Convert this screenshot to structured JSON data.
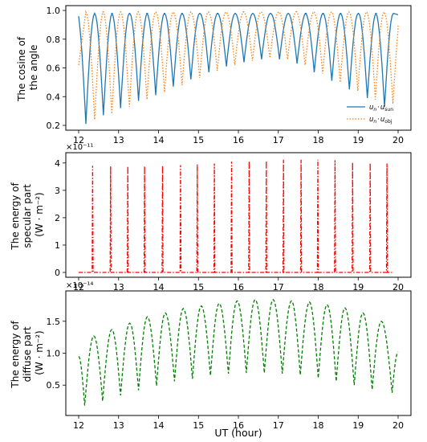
{
  "figure": {
    "xlabel": "UT (hour)"
  },
  "chart_data": [
    {
      "type": "line",
      "ylabel_lines": [
        "The cosine of",
        "the angle"
      ],
      "xlim": [
        12,
        20
      ],
      "ylim": [
        0.2,
        1.0
      ],
      "x_ticks": [
        "12",
        "13",
        "14",
        "15",
        "16",
        "17",
        "18",
        "19",
        "20"
      ],
      "y_ticks": [
        "0.2",
        "0.4",
        "0.6",
        "0.8",
        "1.0"
      ],
      "y_tick_values": [
        0.2,
        0.4,
        0.6,
        0.8,
        1.0
      ],
      "legend_position": "lower right",
      "series": [
        {
          "name_main": "u",
          "name_sub": "n",
          "name_dot": "·",
          "name_main2": "u",
          "name_sub2": "sun",
          "color": "#1f77b4",
          "style": "solid",
          "min_times": [
            12.18,
            12.62,
            13.05,
            13.5,
            13.93,
            14.37,
            14.81,
            15.26,
            15.7,
            16.14,
            16.58,
            17.03,
            17.47,
            17.9,
            18.34,
            18.78,
            19.23,
            19.66
          ],
          "min_values": [
            0.21,
            0.27,
            0.32,
            0.37,
            0.41,
            0.47,
            0.52,
            0.57,
            0.61,
            0.64,
            0.66,
            0.66,
            0.63,
            0.57,
            0.51,
            0.45,
            0.39,
            0.33
          ],
          "max_value": 0.98
        },
        {
          "name_main": "u",
          "name_sub": "n",
          "name_dot": "·",
          "name_main2": "u",
          "name_sub2": "obj",
          "color": "#ff7f0e",
          "style": "dotted",
          "min_times": [
            12.4,
            12.83,
            13.27,
            13.71,
            14.15,
            14.59,
            15.03,
            15.47,
            15.91,
            16.35,
            16.79,
            17.23,
            17.67,
            18.11,
            18.55,
            18.99,
            19.43,
            19.87
          ],
          "min_values": [
            0.24,
            0.28,
            0.33,
            0.38,
            0.43,
            0.48,
            0.53,
            0.58,
            0.62,
            0.65,
            0.67,
            0.66,
            0.62,
            0.56,
            0.5,
            0.44,
            0.38,
            0.35
          ],
          "max_value": 0.99
        }
      ]
    },
    {
      "type": "line",
      "ylabel_lines": [
        "The energy of",
        "specular part",
        "(W · m⁻²)"
      ],
      "offset_text": "×10⁻¹¹",
      "xlim": [
        12,
        20
      ],
      "ylim": [
        0,
        4.2
      ],
      "x_ticks": [
        "12",
        "13",
        "14",
        "15",
        "16",
        "17",
        "18",
        "19",
        "20"
      ],
      "y_ticks": [
        "0",
        "1",
        "2",
        "3",
        "4"
      ],
      "y_tick_values": [
        0,
        1,
        2,
        3,
        4
      ],
      "series": [
        {
          "color": "#ff0000",
          "style": "dashdot",
          "spike_times": [
            12.35,
            12.8,
            13.23,
            13.65,
            14.1,
            14.55,
            14.97,
            15.4,
            15.83,
            16.27,
            16.7,
            17.13,
            17.57,
            17.99,
            18.42,
            18.86,
            19.3,
            19.72
          ],
          "spike_values": [
            3.9,
            3.88,
            3.88,
            3.88,
            3.9,
            3.92,
            3.95,
            3.98,
            4.05,
            4.07,
            4.08,
            4.12,
            4.12,
            4.12,
            4.1,
            4.02,
            4.0,
            3.98
          ],
          "baseline": 0.0
        }
      ]
    },
    {
      "type": "line",
      "ylabel_lines": [
        "The energy of",
        "diffuse part",
        "(W · m⁻²)"
      ],
      "offset_text": "×10⁻¹⁴",
      "xlim": [
        12,
        20
      ],
      "ylim": [
        0.1,
        1.9
      ],
      "x_ticks": [
        "12",
        "13",
        "14",
        "15",
        "16",
        "17",
        "18",
        "19",
        "20"
      ],
      "y_ticks": [
        "0.5",
        "1.0",
        "1.5"
      ],
      "y_tick_values": [
        0.5,
        1.0,
        1.5
      ],
      "series": [
        {
          "color": "#008000",
          "style": "dashed",
          "start": [
            12.0,
            0.95
          ],
          "end": [
            20.0,
            1.02
          ],
          "min_times": [
            12.15,
            12.6,
            13.05,
            13.5,
            13.95,
            14.4,
            14.85,
            15.3,
            15.75,
            16.2,
            16.65,
            17.1,
            17.55,
            18.0,
            18.45,
            18.9,
            19.35,
            19.85
          ],
          "min_values": [
            0.18,
            0.25,
            0.34,
            0.42,
            0.49,
            0.56,
            0.6,
            0.65,
            0.68,
            0.69,
            0.69,
            0.68,
            0.66,
            0.61,
            0.56,
            0.5,
            0.43,
            0.38
          ],
          "max_times": [
            12.38,
            12.83,
            13.28,
            13.72,
            14.17,
            14.62,
            15.07,
            15.52,
            15.97,
            16.42,
            16.87,
            17.33,
            17.78,
            18.22,
            18.67,
            19.12,
            19.58
          ],
          "max_values": [
            1.27,
            1.37,
            1.47,
            1.57,
            1.63,
            1.7,
            1.74,
            1.78,
            1.82,
            1.84,
            1.84,
            1.82,
            1.8,
            1.76,
            1.71,
            1.63,
            1.5
          ]
        }
      ]
    }
  ]
}
